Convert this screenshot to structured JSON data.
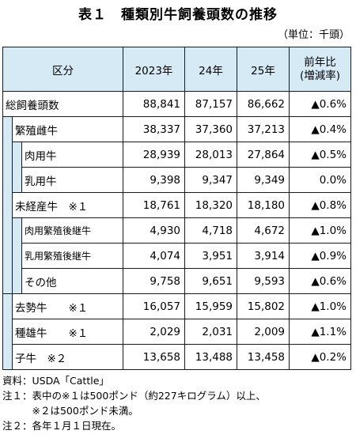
{
  "title": "表１　種類別牛飼養頭数の推移",
  "unit": "（単位：千頭）",
  "headers": {
    "category": "区分",
    "y2023": "2023年",
    "y24": "24年",
    "y25": "25年",
    "ratio_line1": "前年比",
    "ratio_line2": "(増減率)"
  },
  "rows": [
    {
      "label": "総飼養頭数",
      "v2023": "88,841",
      "v24": "87,157",
      "v25": "86,662",
      "ratio": "▲0.6%"
    },
    {
      "label": "繁殖雌牛",
      "v2023": "38,337",
      "v24": "37,360",
      "v25": "37,213",
      "ratio": "▲0.4%"
    },
    {
      "label": "肉用牛",
      "v2023": "28,939",
      "v24": "28,013",
      "v25": "27,864",
      "ratio": "▲0.5%"
    },
    {
      "label": "乳用牛",
      "v2023": "9,398",
      "v24": "9,347",
      "v25": "9,349",
      "ratio": "0.0%"
    },
    {
      "label": "未経産牛　※１",
      "v2023": "18,761",
      "v24": "18,320",
      "v25": "18,180",
      "ratio": "▲0.8%"
    },
    {
      "label": "肉用繁殖後継牛",
      "v2023": "4,930",
      "v24": "4,718",
      "v25": "4,672",
      "ratio": "▲1.0%"
    },
    {
      "label": "乳用繁殖後継牛",
      "v2023": "4,074",
      "v24": "3,951",
      "v25": "3,914",
      "ratio": "▲0.9%"
    },
    {
      "label": "その他",
      "v2023": "9,758",
      "v24": "9,651",
      "v25": "9,593",
      "ratio": "▲0.6%"
    },
    {
      "label": "去勢牛　　※１",
      "v2023": "16,057",
      "v24": "15,959",
      "v25": "15,802",
      "ratio": "▲1.0%"
    },
    {
      "label": "種雄牛　　※１",
      "v2023": "2,029",
      "v24": "2,031",
      "v25": "2,009",
      "ratio": "▲1.1%"
    },
    {
      "label": "子牛　※２",
      "v2023": "13,658",
      "v24": "13,488",
      "v25": "13,458",
      "ratio": "▲0.2%"
    }
  ],
  "notes": [
    "資料：USDA「Cattle」",
    "注１：表中の※１は500ポンド（約227キログラム）以上、",
    "　　　※２は500ポンド未満。",
    "注２：各年１月１日現在。"
  ]
}
